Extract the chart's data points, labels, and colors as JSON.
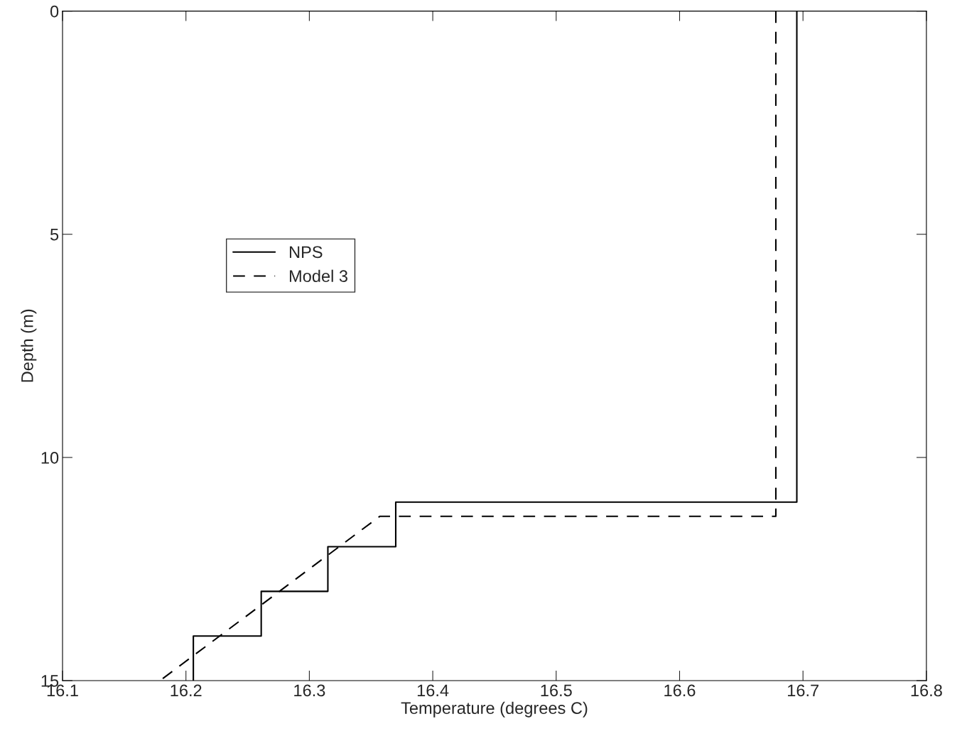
{
  "chart_data": {
    "type": "line",
    "xlabel": "Temperature (degrees C)",
    "ylabel": "Depth (m)",
    "xlim": [
      16.1,
      16.8
    ],
    "xticks": [
      16.1,
      16.2,
      16.3,
      16.4,
      16.5,
      16.6,
      16.7,
      16.8
    ],
    "ylim": [
      15,
      0
    ],
    "yticks": [
      0,
      5,
      10,
      15
    ],
    "grid": false,
    "legend": "center left",
    "series": [
      {
        "name": "NPS",
        "color": "#000000",
        "line_style": "solid",
        "x": [
          16.695,
          16.695,
          16.37,
          16.37,
          16.315,
          16.315,
          16.261,
          16.261,
          16.206,
          16.206
        ],
        "values": [
          0,
          11,
          11,
          12,
          12,
          13,
          13,
          14,
          14,
          15
        ]
      },
      {
        "name": "Model 3",
        "color": "#000000",
        "line_style": "dashed",
        "x": [
          16.678,
          16.678,
          16.357,
          16.179
        ],
        "values": [
          0,
          11.32,
          11.32,
          15
        ]
      }
    ]
  }
}
